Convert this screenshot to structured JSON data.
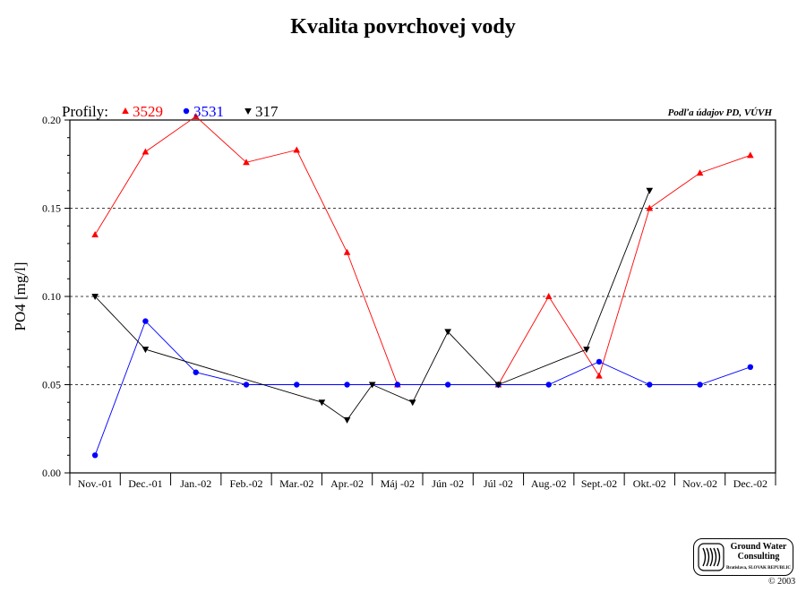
{
  "chart_data": {
    "type": "line",
    "title": "Kvalita povrchovej vody",
    "ylabel": "PO4 [mg/l]",
    "xlabel": "",
    "ylim": [
      0,
      0.2
    ],
    "yticks": [
      "0.00",
      "0.05",
      "0.10",
      "0.15",
      "0.20"
    ],
    "grid": "horizontal dashed at 0.05, 0.10, 0.15",
    "categories": [
      "Nov.-01",
      "Dec.-01",
      "Jan.-02",
      "Feb.-02",
      "Mar.-02",
      "Apr.-02",
      "Máj -02",
      "Jún -02",
      "Júl -02",
      "Aug.-02",
      "Sept.-02",
      "Okt.-02",
      "Nov.-02",
      "Dec.-02"
    ],
    "legend_prefix": "Profily:",
    "legend_placement": "top-left",
    "source_note": "Podľa údajov PD, VÚVH",
    "series": [
      {
        "name": "3529",
        "color": "#ff0000",
        "marker": "triangle-up",
        "points": [
          {
            "x": 0.0,
            "y": 0.135
          },
          {
            "x": 1.0,
            "y": 0.182
          },
          {
            "x": 2.0,
            "y": 0.202
          },
          {
            "x": 3.0,
            "y": 0.176
          },
          {
            "x": 4.0,
            "y": 0.183
          },
          {
            "x": 5.0,
            "y": 0.125
          },
          {
            "x": 6.0,
            "y": 0.05
          },
          {
            "x": 8.0,
            "y": 0.05
          },
          {
            "x": 9.0,
            "y": 0.1
          },
          {
            "x": 10.0,
            "y": 0.055
          },
          {
            "x": 11.0,
            "y": 0.15
          },
          {
            "x": 12.0,
            "y": 0.17
          },
          {
            "x": 13.0,
            "y": 0.18
          }
        ]
      },
      {
        "name": "3531",
        "color": "#0000ff",
        "marker": "circle",
        "points": [
          {
            "x": 0.0,
            "y": 0.01
          },
          {
            "x": 1.0,
            "y": 0.086
          },
          {
            "x": 2.0,
            "y": 0.057
          },
          {
            "x": 3.0,
            "y": 0.05
          },
          {
            "x": 4.0,
            "y": 0.05
          },
          {
            "x": 5.0,
            "y": 0.05
          },
          {
            "x": 6.0,
            "y": 0.05
          },
          {
            "x": 7.0,
            "y": 0.05
          },
          {
            "x": 8.0,
            "y": 0.05
          },
          {
            "x": 9.0,
            "y": 0.05
          },
          {
            "x": 10.0,
            "y": 0.063
          },
          {
            "x": 11.0,
            "y": 0.05
          },
          {
            "x": 12.0,
            "y": 0.05
          },
          {
            "x": 13.0,
            "y": 0.06
          }
        ]
      },
      {
        "name": "317",
        "color": "#000000",
        "marker": "triangle-down",
        "points": [
          {
            "x": 0.0,
            "y": 0.1
          },
          {
            "x": 1.0,
            "y": 0.07
          },
          {
            "x": 4.5,
            "y": 0.04
          },
          {
            "x": 5.0,
            "y": 0.03
          },
          {
            "x": 5.5,
            "y": 0.05
          },
          {
            "x": 6.3,
            "y": 0.04
          },
          {
            "x": 7.0,
            "y": 0.08
          },
          {
            "x": 8.0,
            "y": 0.05
          },
          {
            "x": 9.75,
            "y": 0.07
          },
          {
            "x": 11.0,
            "y": 0.16
          }
        ]
      }
    ]
  },
  "logo": {
    "name": "Ground Water Consulting",
    "subline": "Bratislava, SLOVAK REPUBLIC",
    "copyright": "© 2003"
  }
}
